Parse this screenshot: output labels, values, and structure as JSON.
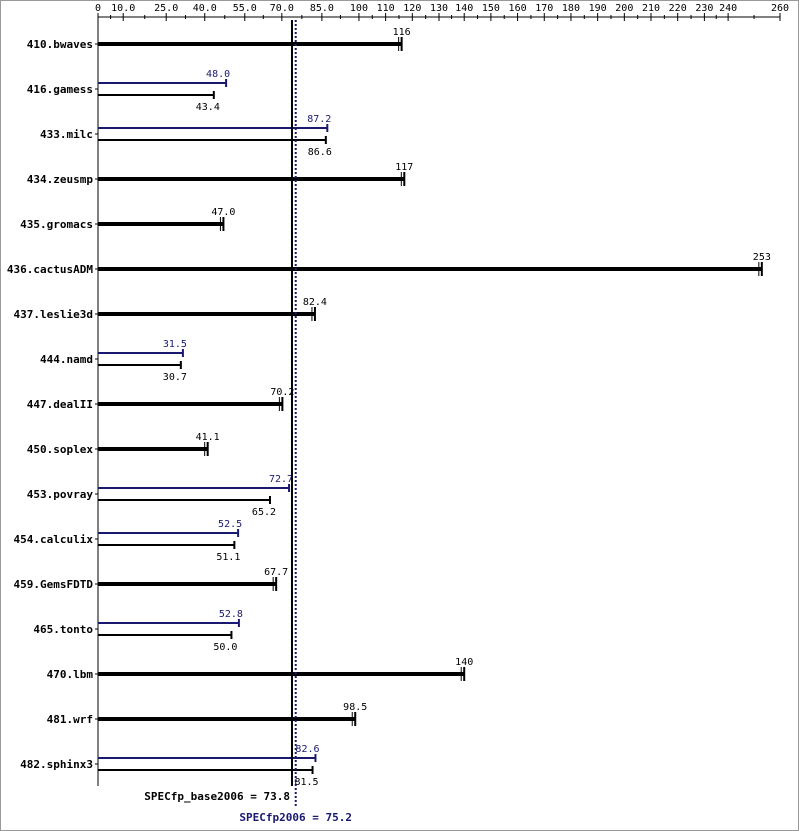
{
  "chart_data": {
    "type": "bar",
    "orientation": "horizontal",
    "x_ticks": [
      "0",
      "10.0",
      "25.0",
      "40.0",
      "55.0",
      "70.0",
      "85.0",
      "100",
      "110",
      "120",
      "130",
      "140",
      "150",
      "160",
      "170",
      "180",
      "190",
      "200",
      "210",
      "220",
      "230",
      "240",
      "260"
    ],
    "x_tick_values": [
      0,
      10,
      25,
      40,
      55,
      70,
      85,
      100,
      110,
      120,
      130,
      140,
      150,
      160,
      170,
      180,
      190,
      200,
      210,
      220,
      230,
      240,
      260
    ],
    "xlim": [
      0,
      260
    ],
    "grid": false,
    "series": [
      {
        "name": "base",
        "color": "#000000"
      },
      {
        "name": "peak",
        "color": "#191970"
      }
    ],
    "benchmarks": [
      {
        "name": "410.bwaves",
        "base": 116,
        "base_label": "116",
        "peak": null,
        "peak_label": ""
      },
      {
        "name": "416.gamess",
        "base": 43.4,
        "base_label": "43.4",
        "peak": 48.0,
        "peak_label": "48.0"
      },
      {
        "name": "433.milc",
        "base": 86.6,
        "base_label": "86.6",
        "peak": 87.2,
        "peak_label": "87.2"
      },
      {
        "name": "434.zeusmp",
        "base": 117,
        "base_label": "117",
        "peak": null,
        "peak_label": ""
      },
      {
        "name": "435.gromacs",
        "base": 47.0,
        "base_label": "47.0",
        "peak": null,
        "peak_label": ""
      },
      {
        "name": "436.cactusADM",
        "base": 253,
        "base_label": "253",
        "peak": null,
        "peak_label": ""
      },
      {
        "name": "437.leslie3d",
        "base": 82.4,
        "base_label": "82.4",
        "peak": null,
        "peak_label": ""
      },
      {
        "name": "444.namd",
        "base": 30.7,
        "base_label": "30.7",
        "peak": 31.5,
        "peak_label": "31.5"
      },
      {
        "name": "447.dealII",
        "base": 70.2,
        "base_label": "70.2",
        "peak": null,
        "peak_label": ""
      },
      {
        "name": "450.soplex",
        "base": 41.1,
        "base_label": "41.1",
        "peak": null,
        "peak_label": ""
      },
      {
        "name": "453.povray",
        "base": 65.2,
        "base_label": "65.2",
        "peak": 72.7,
        "peak_label": "72.7"
      },
      {
        "name": "454.calculix",
        "base": 51.1,
        "base_label": "51.1",
        "peak": 52.5,
        "peak_label": "52.5"
      },
      {
        "name": "459.GemsFDTD",
        "base": 67.7,
        "base_label": "67.7",
        "peak": null,
        "peak_label": ""
      },
      {
        "name": "465.tonto",
        "base": 50.0,
        "base_label": "50.0",
        "peak": 52.8,
        "peak_label": "52.8"
      },
      {
        "name": "470.lbm",
        "base": 140,
        "base_label": "140",
        "peak": null,
        "peak_label": ""
      },
      {
        "name": "481.wrf",
        "base": 98.5,
        "base_label": "98.5",
        "peak": null,
        "peak_label": ""
      },
      {
        "name": "482.sphinx3",
        "base": 81.5,
        "base_label": "81.5",
        "peak": 82.6,
        "peak_label": "82.6"
      }
    ],
    "base_mean": {
      "value": 73.8,
      "label": "SPECfp_base2006 = 73.8",
      "color": "#000000"
    },
    "peak_mean": {
      "value": 75.2,
      "label": "SPECfp2006 = 75.2",
      "color": "#191970"
    }
  }
}
